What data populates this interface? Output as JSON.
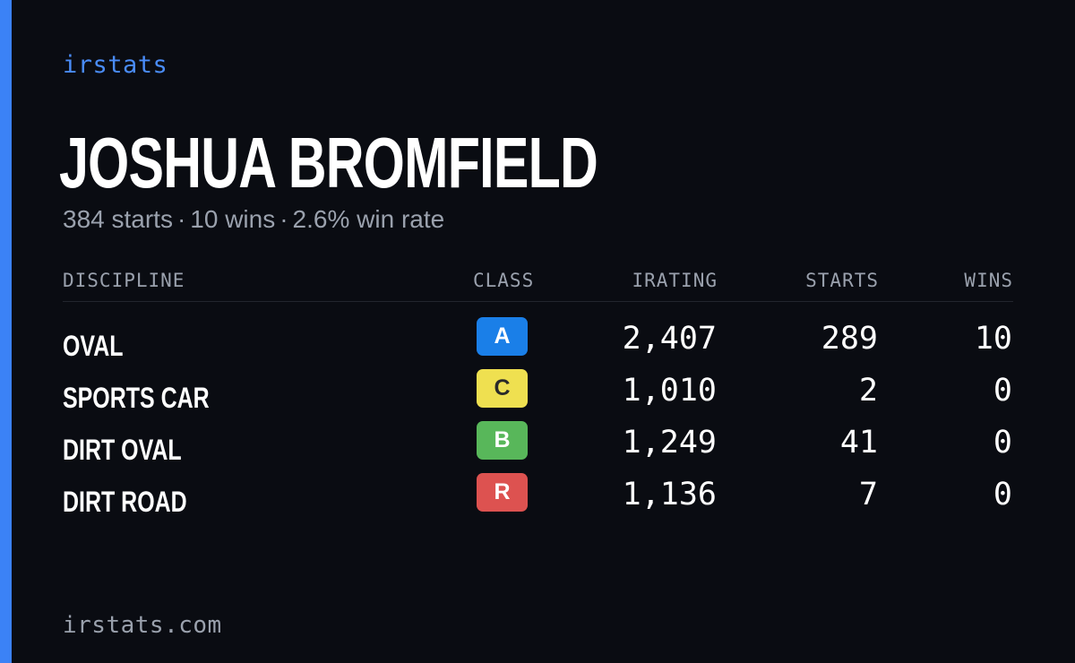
{
  "brand": "irstats",
  "driver": {
    "name": "JOSHUA BROMFIELD",
    "summary": {
      "starts": "384 starts",
      "wins": "10 wins",
      "win_rate": "2.6% win rate",
      "separator": "·"
    }
  },
  "table": {
    "headers": {
      "discipline": "DISCIPLINE",
      "class": "CLASS",
      "irating": "IRATING",
      "starts": "STARTS",
      "wins": "WINS"
    },
    "rows": [
      {
        "discipline": "OVAL",
        "class": "A",
        "class_color": "#1a7fe8",
        "class_text_color": "#ffffff",
        "irating": "2,407",
        "starts": "289",
        "wins": "10"
      },
      {
        "discipline": "SPORTS CAR",
        "class": "C",
        "class_color": "#efe050",
        "class_text_color": "#2a2a2a",
        "irating": "1,010",
        "starts": "2",
        "wins": "0"
      },
      {
        "discipline": "DIRT OVAL",
        "class": "B",
        "class_color": "#58b75a",
        "class_text_color": "#ffffff",
        "irating": "1,249",
        "starts": "41",
        "wins": "0"
      },
      {
        "discipline": "DIRT ROAD",
        "class": "R",
        "class_color": "#dd5250",
        "class_text_color": "#ffffff",
        "irating": "1,136",
        "starts": "7",
        "wins": "0"
      }
    ]
  },
  "footer": "irstats.com",
  "colors": {
    "accent": "#3b82f6",
    "background": "#0a0c12",
    "muted": "#9aa1ad"
  }
}
